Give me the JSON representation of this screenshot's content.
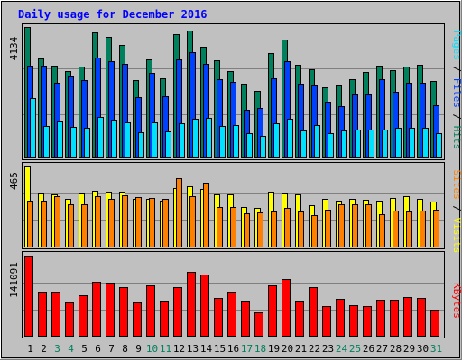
{
  "title": "Daily usage for December 2016",
  "colors": {
    "background": "#c0c0c0",
    "title": "#0000ff",
    "hits": "#00805c",
    "files": "#0040ff",
    "pages": "#00e0ff",
    "visits": "#ffff00",
    "sites": "#ff8000",
    "kbytes": "#ff0000",
    "weekend_label": "#00805c",
    "weekday_label": "#000000"
  },
  "chart_data": [
    {
      "type": "bar",
      "panel": "hits-files-pages",
      "ymax_label": "4134",
      "ymax": 4134,
      "legend": [
        "Pages",
        "/",
        "Files",
        "/",
        "Hits"
      ],
      "categories": [
        "1",
        "2",
        "3",
        "4",
        "5",
        "6",
        "7",
        "8",
        "9",
        "10",
        "11",
        "12",
        "13",
        "14",
        "15",
        "16",
        "17",
        "18",
        "19",
        "20",
        "21",
        "22",
        "23",
        "24",
        "25",
        "26",
        "27",
        "28",
        "29",
        "30",
        "31"
      ],
      "series": [
        {
          "name": "Hits",
          "values": [
            4134,
            3130,
            2930,
            2750,
            2900,
            3950,
            3830,
            3570,
            2470,
            3120,
            2520,
            3900,
            4030,
            3510,
            3100,
            2760,
            2350,
            2130,
            3320,
            3750,
            2940,
            2790,
            2250,
            2280,
            2500,
            2720,
            2920,
            2770,
            2880,
            2950,
            2430
          ]
        },
        {
          "name": "Files",
          "values": [
            2930,
            2930,
            2370,
            2590,
            2460,
            3160,
            3060,
            2960,
            1930,
            2680,
            1960,
            3110,
            3340,
            2980,
            2490,
            2400,
            1540,
            1580,
            2530,
            3070,
            2360,
            2290,
            1790,
            1630,
            2010,
            2010,
            2500,
            2100,
            2370,
            2370,
            1670
          ]
        },
        {
          "name": "Pages",
          "values": [
            1900,
            1030,
            1170,
            990,
            970,
            1310,
            1220,
            1140,
            810,
            1120,
            850,
            1100,
            1250,
            1280,
            1030,
            1040,
            800,
            720,
            1100,
            1260,
            880,
            1040,
            800,
            880,
            920,
            900,
            900,
            960,
            960,
            960,
            780
          ]
        }
      ]
    },
    {
      "type": "bar",
      "panel": "visits-sites",
      "ymax_label": "465",
      "ymax": 465,
      "legend": [
        "Sites",
        "/",
        "Visits"
      ],
      "categories": [
        "1",
        "2",
        "3",
        "4",
        "5",
        "6",
        "7",
        "8",
        "9",
        "10",
        "11",
        "12",
        "13",
        "14",
        "15",
        "16",
        "17",
        "18",
        "19",
        "20",
        "21",
        "22",
        "23",
        "24",
        "25",
        "26",
        "27",
        "28",
        "29",
        "30",
        "31"
      ],
      "series": [
        {
          "name": "Visits",
          "values": [
            465,
            308,
            305,
            278,
            308,
            328,
            318,
            318,
            278,
            278,
            271,
            340,
            353,
            338,
            307,
            303,
            235,
            228,
            318,
            308,
            303,
            245,
            277,
            269,
            277,
            272,
            271,
            283,
            292,
            278,
            266
          ]
        },
        {
          "name": "Sites",
          "values": [
            268,
            268,
            295,
            247,
            250,
            296,
            280,
            298,
            287,
            284,
            279,
            400,
            293,
            370,
            233,
            230,
            198,
            203,
            208,
            225,
            205,
            185,
            215,
            246,
            248,
            250,
            190,
            213,
            208,
            213,
            218
          ]
        }
      ]
    },
    {
      "type": "bar",
      "panel": "kbytes",
      "ymax_label": "141091",
      "ymax": 141091,
      "legend": [
        "KBytes"
      ],
      "categories": [
        "1",
        "2",
        "3",
        "4",
        "5",
        "6",
        "7",
        "8",
        "9",
        "10",
        "11",
        "12",
        "13",
        "14",
        "15",
        "16",
        "17",
        "18",
        "19",
        "20",
        "21",
        "22",
        "23",
        "24",
        "25",
        "26",
        "27",
        "28",
        "29",
        "30",
        "31"
      ],
      "series": [
        {
          "name": "KBytes",
          "values": [
            141091,
            79000,
            78000,
            60000,
            72000,
            96000,
            94000,
            87000,
            59000,
            89000,
            62000,
            86000,
            113000,
            108000,
            67000,
            78000,
            63000,
            43000,
            90000,
            100000,
            63000,
            86000,
            53000,
            66000,
            55000,
            54000,
            64000,
            65000,
            69000,
            68000,
            47000
          ]
        }
      ]
    }
  ],
  "x_axis": {
    "labels": [
      "1",
      "2",
      "3",
      "4",
      "5",
      "6",
      "7",
      "8",
      "9",
      "10",
      "11",
      "12",
      "13",
      "14",
      "15",
      "16",
      "17",
      "18",
      "19",
      "20",
      "21",
      "22",
      "23",
      "24",
      "25",
      "26",
      "27",
      "28",
      "29",
      "30",
      "31"
    ],
    "weekend_days": [
      "3",
      "4",
      "10",
      "11",
      "17",
      "18",
      "24",
      "25",
      "31"
    ]
  }
}
